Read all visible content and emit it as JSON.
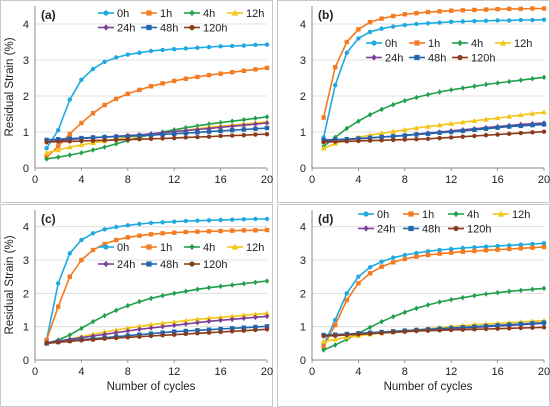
{
  "chart_data": [
    {
      "type": "line",
      "panel_label": "(a)",
      "xlabel": "",
      "ylabel": "Residual Strain (%)",
      "xlim": [
        0,
        20
      ],
      "ylim": [
        0,
        4.5
      ],
      "xticks": [
        "0",
        "4",
        "8",
        "12",
        "16",
        "20"
      ],
      "yticks": [
        "0",
        "1",
        "2",
        "3",
        "4"
      ],
      "x": [
        1,
        2,
        3,
        4,
        5,
        6,
        7,
        8,
        9,
        10,
        11,
        12,
        13,
        14,
        15,
        16,
        17,
        18,
        19,
        20
      ],
      "series": [
        {
          "name": "0h",
          "color": "#1fa9e1",
          "marker": "circle",
          "values": [
            0.55,
            1.05,
            1.9,
            2.45,
            2.75,
            2.95,
            3.07,
            3.15,
            3.2,
            3.25,
            3.28,
            3.3,
            3.32,
            3.34,
            3.36,
            3.38,
            3.39,
            3.4,
            3.42,
            3.43
          ]
        },
        {
          "name": "1h",
          "color": "#f47b20",
          "marker": "square",
          "values": [
            0.3,
            0.6,
            0.95,
            1.25,
            1.52,
            1.75,
            1.92,
            2.06,
            2.17,
            2.27,
            2.35,
            2.42,
            2.48,
            2.53,
            2.58,
            2.62,
            2.66,
            2.7,
            2.74,
            2.78
          ]
        },
        {
          "name": "4h",
          "color": "#21a04b",
          "marker": "diamond",
          "values": [
            0.25,
            0.3,
            0.36,
            0.42,
            0.5,
            0.58,
            0.67,
            0.76,
            0.85,
            0.93,
            1.0,
            1.06,
            1.12,
            1.17,
            1.22,
            1.26,
            1.3,
            1.34,
            1.38,
            1.42
          ]
        },
        {
          "name": "12h",
          "color": "#f5c518",
          "marker": "triangle",
          "values": [
            0.42,
            0.5,
            0.58,
            0.64,
            0.7,
            0.75,
            0.8,
            0.85,
            0.89,
            0.93,
            0.97,
            1.01,
            1.05,
            1.09,
            1.13,
            1.16,
            1.19,
            1.22,
            1.25,
            1.28
          ]
        },
        {
          "name": "24h",
          "color": "#7b3f98",
          "marker": "diamond",
          "values": [
            0.72,
            0.76,
            0.79,
            0.82,
            0.84,
            0.86,
            0.88,
            0.9,
            0.92,
            0.95,
            0.98,
            1.01,
            1.04,
            1.07,
            1.1,
            1.13,
            1.16,
            1.19,
            1.22,
            1.25
          ]
        },
        {
          "name": "48h",
          "color": "#2166ac",
          "marker": "square",
          "values": [
            0.78,
            0.8,
            0.82,
            0.83,
            0.85,
            0.86,
            0.87,
            0.88,
            0.9,
            0.91,
            0.93,
            0.95,
            0.97,
            0.99,
            1.01,
            1.03,
            1.05,
            1.07,
            1.09,
            1.11
          ]
        },
        {
          "name": "120h",
          "color": "#8b3a1a",
          "marker": "circle",
          "values": [
            0.72,
            0.73,
            0.74,
            0.75,
            0.76,
            0.77,
            0.78,
            0.79,
            0.8,
            0.81,
            0.82,
            0.83,
            0.85,
            0.86,
            0.87,
            0.89,
            0.9,
            0.91,
            0.93,
            0.94
          ]
        }
      ]
    },
    {
      "type": "line",
      "panel_label": "(b)",
      "xlabel": "",
      "ylabel": "",
      "xlim": [
        0,
        20
      ],
      "ylim": [
        0,
        4.5
      ],
      "xticks": [
        "0",
        "4",
        "8",
        "12",
        "16",
        "20"
      ],
      "yticks": [
        "0",
        "1",
        "2",
        "3",
        "4"
      ],
      "x": [
        1,
        2,
        3,
        4,
        5,
        6,
        7,
        8,
        9,
        10,
        11,
        12,
        13,
        14,
        15,
        16,
        17,
        18,
        19,
        20
      ],
      "series": [
        {
          "name": "0h",
          "color": "#1fa9e1",
          "marker": "circle",
          "values": [
            0.85,
            2.3,
            3.2,
            3.6,
            3.78,
            3.87,
            3.93,
            3.97,
            4.0,
            4.02,
            4.04,
            4.06,
            4.07,
            4.08,
            4.09,
            4.1,
            4.1,
            4.11,
            4.11,
            4.12
          ]
        },
        {
          "name": "1h",
          "color": "#f47b20",
          "marker": "square",
          "values": [
            1.4,
            2.8,
            3.5,
            3.85,
            4.05,
            4.15,
            4.22,
            4.27,
            4.3,
            4.33,
            4.35,
            4.37,
            4.38,
            4.39,
            4.4,
            4.41,
            4.42,
            4.42,
            4.43,
            4.43
          ]
        },
        {
          "name": "4h",
          "color": "#21a04b",
          "marker": "diamond",
          "values": [
            0.6,
            0.85,
            1.1,
            1.3,
            1.48,
            1.63,
            1.76,
            1.87,
            1.96,
            2.04,
            2.11,
            2.17,
            2.22,
            2.27,
            2.32,
            2.36,
            2.4,
            2.44,
            2.48,
            2.52
          ]
        },
        {
          "name": "12h",
          "color": "#f5c518",
          "marker": "triangle",
          "values": [
            0.55,
            0.68,
            0.78,
            0.85,
            0.91,
            0.96,
            1.01,
            1.06,
            1.11,
            1.15,
            1.19,
            1.23,
            1.27,
            1.31,
            1.35,
            1.39,
            1.43,
            1.47,
            1.51,
            1.55
          ]
        },
        {
          "name": "24h",
          "color": "#7b3f98",
          "marker": "diamond",
          "values": [
            0.75,
            0.77,
            0.79,
            0.81,
            0.83,
            0.86,
            0.88,
            0.91,
            0.94,
            0.97,
            1.0,
            1.03,
            1.06,
            1.09,
            1.12,
            1.15,
            1.18,
            1.21,
            1.23,
            1.25
          ]
        },
        {
          "name": "48h",
          "color": "#2166ac",
          "marker": "square",
          "values": [
            0.78,
            0.79,
            0.8,
            0.82,
            0.84,
            0.86,
            0.88,
            0.9,
            0.93,
            0.95,
            0.98,
            1.0,
            1.03,
            1.06,
            1.09,
            1.12,
            1.15,
            1.17,
            1.19,
            1.21
          ]
        },
        {
          "name": "120h",
          "color": "#8b3a1a",
          "marker": "circle",
          "values": [
            0.72,
            0.73,
            0.74,
            0.75,
            0.76,
            0.77,
            0.78,
            0.79,
            0.8,
            0.81,
            0.83,
            0.85,
            0.87,
            0.89,
            0.91,
            0.93,
            0.95,
            0.97,
            0.99,
            1.01
          ]
        }
      ]
    },
    {
      "type": "line",
      "panel_label": "(c)",
      "xlabel": "Number of cycles",
      "ylabel": "Residual Strain (%)",
      "xlim": [
        0,
        20
      ],
      "ylim": [
        0,
        4.5
      ],
      "xticks": [
        "0",
        "4",
        "8",
        "12",
        "16",
        "20"
      ],
      "yticks": [
        "0",
        "1",
        "2",
        "3",
        "4"
      ],
      "x": [
        1,
        2,
        3,
        4,
        5,
        6,
        7,
        8,
        9,
        10,
        11,
        12,
        13,
        14,
        15,
        16,
        17,
        18,
        19,
        20
      ],
      "series": [
        {
          "name": "0h",
          "color": "#1fa9e1",
          "marker": "circle",
          "values": [
            0.6,
            2.3,
            3.2,
            3.6,
            3.8,
            3.92,
            3.99,
            4.04,
            4.08,
            4.11,
            4.13,
            4.15,
            4.17,
            4.18,
            4.19,
            4.2,
            4.21,
            4.22,
            4.23,
            4.23
          ]
        },
        {
          "name": "1h",
          "color": "#f47b20",
          "marker": "square",
          "values": [
            0.6,
            1.6,
            2.5,
            3.0,
            3.3,
            3.48,
            3.6,
            3.68,
            3.73,
            3.77,
            3.8,
            3.82,
            3.84,
            3.85,
            3.86,
            3.87,
            3.88,
            3.89,
            3.89,
            3.9
          ]
        },
        {
          "name": "4h",
          "color": "#21a04b",
          "marker": "diamond",
          "values": [
            0.5,
            0.6,
            0.75,
            0.95,
            1.15,
            1.33,
            1.49,
            1.63,
            1.75,
            1.85,
            1.93,
            2.0,
            2.06,
            2.12,
            2.17,
            2.21,
            2.25,
            2.29,
            2.33,
            2.37
          ]
        },
        {
          "name": "12h",
          "color": "#f5c518",
          "marker": "triangle",
          "values": [
            0.5,
            0.56,
            0.63,
            0.7,
            0.77,
            0.84,
            0.9,
            0.96,
            1.01,
            1.06,
            1.1,
            1.14,
            1.18,
            1.22,
            1.25,
            1.28,
            1.31,
            1.34,
            1.37,
            1.4
          ]
        },
        {
          "name": "24h",
          "color": "#7b3f98",
          "marker": "diamond",
          "values": [
            0.52,
            0.57,
            0.62,
            0.67,
            0.72,
            0.77,
            0.82,
            0.87,
            0.92,
            0.96,
            1.0,
            1.04,
            1.08,
            1.12,
            1.16,
            1.19,
            1.22,
            1.25,
            1.28,
            1.31
          ]
        },
        {
          "name": "48h",
          "color": "#2166ac",
          "marker": "square",
          "values": [
            0.5,
            0.54,
            0.58,
            0.61,
            0.64,
            0.67,
            0.7,
            0.73,
            0.76,
            0.79,
            0.82,
            0.85,
            0.87,
            0.89,
            0.91,
            0.93,
            0.95,
            0.97,
            0.99,
            1.01
          ]
        },
        {
          "name": "120h",
          "color": "#8b3a1a",
          "marker": "circle",
          "values": [
            0.5,
            0.53,
            0.56,
            0.59,
            0.61,
            0.64,
            0.66,
            0.68,
            0.7,
            0.72,
            0.74,
            0.76,
            0.78,
            0.8,
            0.82,
            0.84,
            0.86,
            0.88,
            0.9,
            0.92
          ]
        }
      ]
    },
    {
      "type": "line",
      "panel_label": "(d)",
      "xlabel": "Number of cycles",
      "ylabel": "",
      "xlim": [
        0,
        20
      ],
      "ylim": [
        0,
        4.5
      ],
      "xticks": [
        "0",
        "4",
        "8",
        "12",
        "16",
        "20"
      ],
      "yticks": [
        "0",
        "1",
        "2",
        "3",
        "4"
      ],
      "x": [
        1,
        2,
        3,
        4,
        5,
        6,
        7,
        8,
        9,
        10,
        11,
        12,
        13,
        14,
        15,
        16,
        17,
        18,
        19,
        20
      ],
      "series": [
        {
          "name": "0h",
          "color": "#1fa9e1",
          "marker": "circle",
          "values": [
            0.45,
            1.2,
            2.0,
            2.5,
            2.78,
            2.95,
            3.07,
            3.15,
            3.21,
            3.26,
            3.3,
            3.33,
            3.36,
            3.38,
            3.4,
            3.42,
            3.44,
            3.46,
            3.48,
            3.5
          ]
        },
        {
          "name": "1h",
          "color": "#f47b20",
          "marker": "square",
          "values": [
            0.4,
            1.05,
            1.8,
            2.3,
            2.6,
            2.8,
            2.93,
            3.03,
            3.1,
            3.15,
            3.19,
            3.22,
            3.25,
            3.27,
            3.29,
            3.31,
            3.33,
            3.35,
            3.37,
            3.39
          ]
        },
        {
          "name": "4h",
          "color": "#21a04b",
          "marker": "diamond",
          "values": [
            0.3,
            0.45,
            0.62,
            0.8,
            0.98,
            1.15,
            1.3,
            1.43,
            1.55,
            1.65,
            1.74,
            1.81,
            1.87,
            1.93,
            1.98,
            2.02,
            2.06,
            2.09,
            2.12,
            2.15
          ]
        },
        {
          "name": "12h",
          "color": "#f5c518",
          "marker": "triangle",
          "values": [
            0.55,
            0.62,
            0.68,
            0.73,
            0.77,
            0.81,
            0.85,
            0.88,
            0.91,
            0.94,
            0.97,
            1.0,
            1.03,
            1.06,
            1.08,
            1.1,
            1.12,
            1.14,
            1.16,
            1.18
          ]
        },
        {
          "name": "24h",
          "color": "#7b3f98",
          "marker": "diamond",
          "values": [
            0.72,
            0.74,
            0.76,
            0.78,
            0.8,
            0.82,
            0.84,
            0.86,
            0.88,
            0.9,
            0.92,
            0.94,
            0.96,
            0.98,
            1.0,
            1.02,
            1.04,
            1.06,
            1.08,
            1.1
          ]
        },
        {
          "name": "48h",
          "color": "#2166ac",
          "marker": "square",
          "values": [
            0.75,
            0.76,
            0.78,
            0.8,
            0.82,
            0.84,
            0.86,
            0.88,
            0.9,
            0.92,
            0.94,
            0.96,
            0.98,
            1.0,
            1.02,
            1.04,
            1.06,
            1.08,
            1.1,
            1.12
          ]
        },
        {
          "name": "120h",
          "color": "#8b3a1a",
          "marker": "circle",
          "values": [
            0.72,
            0.73,
            0.75,
            0.77,
            0.79,
            0.81,
            0.83,
            0.85,
            0.87,
            0.88,
            0.89,
            0.9,
            0.91,
            0.92,
            0.93,
            0.94,
            0.95,
            0.96,
            0.97,
            0.98
          ]
        }
      ]
    }
  ]
}
